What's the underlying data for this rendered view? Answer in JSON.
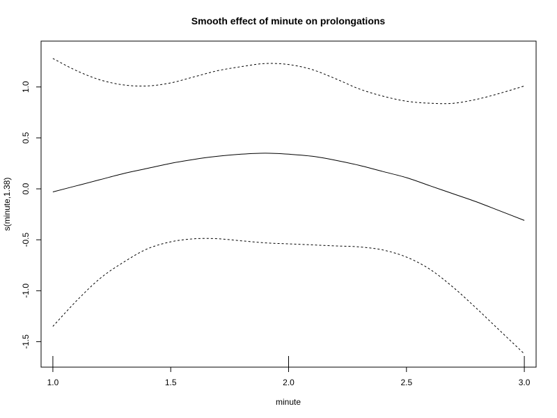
{
  "chart_data": {
    "type": "line",
    "title": "Smooth effect of minute on prolongations",
    "xlabel": "minute",
    "ylabel": "s(minute,1.38)",
    "xlim": [
      0.95,
      3.05
    ],
    "ylim": [
      -1.75,
      1.45
    ],
    "x_ticks": [
      1.0,
      1.5,
      2.0,
      2.5,
      3.0
    ],
    "x_tick_labels": [
      "1.0",
      "1.5",
      "2.0",
      "2.5",
      "3.0"
    ],
    "y_ticks": [
      -1.5,
      -1.0,
      -0.5,
      0.0,
      0.5,
      1.0
    ],
    "y_tick_labels": [
      "-1.5",
      "-1.0",
      "-0.5",
      "0.0",
      "0.5",
      "1.0"
    ],
    "grid": false,
    "rug": [
      1.0,
      2.0,
      3.0
    ],
    "series": [
      {
        "role": "fit",
        "style": "solid",
        "x": [
          1.0,
          1.1,
          1.2,
          1.3,
          1.4,
          1.5,
          1.6,
          1.7,
          1.8,
          1.9,
          2.0,
          2.1,
          2.2,
          2.3,
          2.4,
          2.5,
          2.6,
          2.7,
          2.8,
          2.9,
          3.0
        ],
        "y": [
          -0.03,
          0.03,
          0.09,
          0.15,
          0.2,
          0.25,
          0.29,
          0.32,
          0.34,
          0.35,
          0.34,
          0.32,
          0.28,
          0.23,
          0.17,
          0.11,
          0.03,
          -0.05,
          -0.13,
          -0.22,
          -0.31
        ]
      },
      {
        "role": "upper-band",
        "style": "dashed",
        "x": [
          1.0,
          1.1,
          1.2,
          1.3,
          1.4,
          1.5,
          1.6,
          1.7,
          1.8,
          1.9,
          2.0,
          2.1,
          2.2,
          2.3,
          2.4,
          2.5,
          2.6,
          2.7,
          2.8,
          2.9,
          3.0
        ],
        "y": [
          1.28,
          1.16,
          1.07,
          1.02,
          1.01,
          1.04,
          1.1,
          1.16,
          1.2,
          1.23,
          1.22,
          1.17,
          1.08,
          0.98,
          0.91,
          0.86,
          0.84,
          0.84,
          0.88,
          0.94,
          1.01
        ]
      },
      {
        "role": "lower-band",
        "style": "dashed",
        "x": [
          1.0,
          1.1,
          1.2,
          1.3,
          1.4,
          1.5,
          1.6,
          1.7,
          1.8,
          1.9,
          2.0,
          2.1,
          2.2,
          2.3,
          2.4,
          2.5,
          2.6,
          2.7,
          2.8,
          2.9,
          3.0
        ],
        "y": [
          -1.35,
          -1.1,
          -0.88,
          -0.72,
          -0.59,
          -0.52,
          -0.49,
          -0.49,
          -0.51,
          -0.53,
          -0.54,
          -0.55,
          -0.56,
          -0.57,
          -0.6,
          -0.67,
          -0.79,
          -0.97,
          -1.18,
          -1.4,
          -1.62
        ]
      }
    ]
  }
}
